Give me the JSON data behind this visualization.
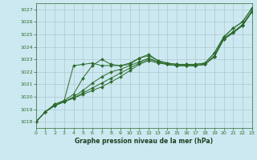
{
  "xlabel": "Graphe pression niveau de la mer (hPa)",
  "ylim": [
    1017.5,
    1027.5
  ],
  "xlim": [
    0,
    23
  ],
  "yticks": [
    1018,
    1019,
    1020,
    1021,
    1022,
    1023,
    1024,
    1025,
    1026,
    1027
  ],
  "xticks": [
    0,
    1,
    2,
    3,
    4,
    5,
    6,
    7,
    8,
    9,
    10,
    11,
    12,
    13,
    14,
    15,
    16,
    17,
    18,
    19,
    20,
    21,
    22,
    23
  ],
  "bg_color": "#cce8f0",
  "grid_color": "#b0c8d0",
  "line_color": "#2d6b2d",
  "series": [
    [
      1018.0,
      1018.8,
      1019.4,
      1019.7,
      1022.5,
      1022.6,
      1022.7,
      1022.5,
      1022.5,
      1022.5,
      1022.6,
      1023.1,
      1023.3,
      1022.9,
      1022.7,
      1022.6,
      1022.6,
      1022.6,
      1022.7,
      1023.5,
      1024.8,
      1025.5,
      1026.0,
      1027.1
    ],
    [
      1018.0,
      1018.8,
      1019.4,
      1019.7,
      1020.2,
      1021.5,
      1022.5,
      1023.0,
      1022.6,
      1022.5,
      1022.7,
      1023.1,
      1023.4,
      1022.9,
      1022.7,
      1022.6,
      1022.6,
      1022.6,
      1022.7,
      1023.5,
      1024.8,
      1025.5,
      1026.0,
      1027.1
    ],
    [
      1018.0,
      1018.8,
      1019.3,
      1019.6,
      1020.0,
      1020.5,
      1021.1,
      1021.6,
      1022.0,
      1022.2,
      1022.5,
      1022.8,
      1023.1,
      1022.8,
      1022.6,
      1022.5,
      1022.5,
      1022.5,
      1022.6,
      1023.3,
      1024.7,
      1025.2,
      1025.8,
      1026.9
    ],
    [
      1018.0,
      1018.8,
      1019.3,
      1019.6,
      1019.9,
      1020.3,
      1020.7,
      1021.1,
      1021.5,
      1021.9,
      1022.3,
      1022.7,
      1023.0,
      1022.8,
      1022.6,
      1022.5,
      1022.5,
      1022.5,
      1022.6,
      1023.2,
      1024.6,
      1025.2,
      1025.7,
      1026.8
    ],
    [
      1018.0,
      1018.8,
      1019.3,
      1019.6,
      1019.9,
      1020.2,
      1020.5,
      1020.8,
      1021.2,
      1021.6,
      1022.1,
      1022.6,
      1022.9,
      1022.7,
      1022.6,
      1022.5,
      1022.5,
      1022.5,
      1022.6,
      1023.2,
      1024.6,
      1025.1,
      1025.7,
      1026.8
    ]
  ]
}
